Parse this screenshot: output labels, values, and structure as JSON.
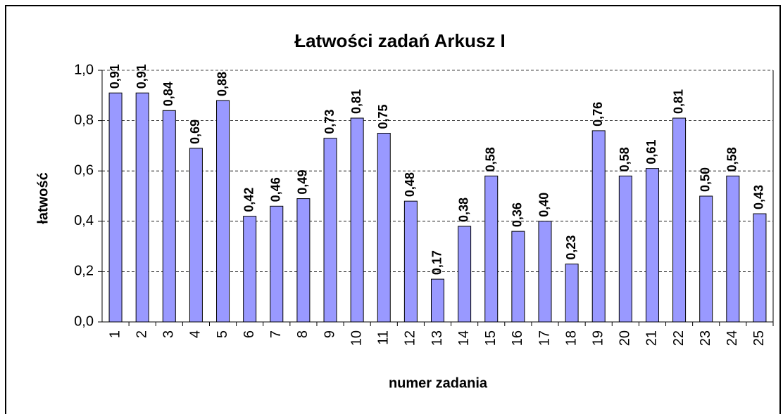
{
  "chart_data": {
    "type": "bar",
    "title": "Łatwości zadań Arkusz I",
    "x_label": "numer zadania",
    "y_label": "łatwość",
    "categories": [
      "1",
      "2",
      "3",
      "4",
      "5",
      "6",
      "7",
      "8",
      "9",
      "10",
      "11",
      "12",
      "13",
      "14",
      "15",
      "16",
      "17",
      "18",
      "19",
      "20",
      "21",
      "22",
      "23",
      "24",
      "25"
    ],
    "values": [
      0.91,
      0.91,
      0.84,
      0.69,
      0.88,
      0.42,
      0.46,
      0.49,
      0.73,
      0.81,
      0.75,
      0.48,
      0.17,
      0.38,
      0.58,
      0.36,
      0.4,
      0.23,
      0.76,
      0.58,
      0.61,
      0.81,
      0.5,
      0.58,
      0.43
    ],
    "value_labels": [
      "0,91",
      "0,91",
      "0,84",
      "0,69",
      "0,88",
      "0,42",
      "0,46",
      "0,49",
      "0,73",
      "0,81",
      "0,75",
      "0,48",
      "0,17",
      "0,38",
      "0,58",
      "0,36",
      "0,40",
      "0,23",
      "0,76",
      "0,58",
      "0,61",
      "0,81",
      "0,50",
      "0,58",
      "0,43"
    ],
    "color": "#9999ff",
    "ylim": [
      0,
      1
    ],
    "yticks": [
      {
        "value": 0,
        "label": "0,0"
      },
      {
        "value": 0.2,
        "label": "0,2"
      },
      {
        "value": 0.4,
        "label": "0,4"
      },
      {
        "value": 0.6,
        "label": "0,6"
      },
      {
        "value": 0.8,
        "label": "0,8"
      },
      {
        "value": 1,
        "label": "1,0"
      }
    ],
    "grid": true
  }
}
